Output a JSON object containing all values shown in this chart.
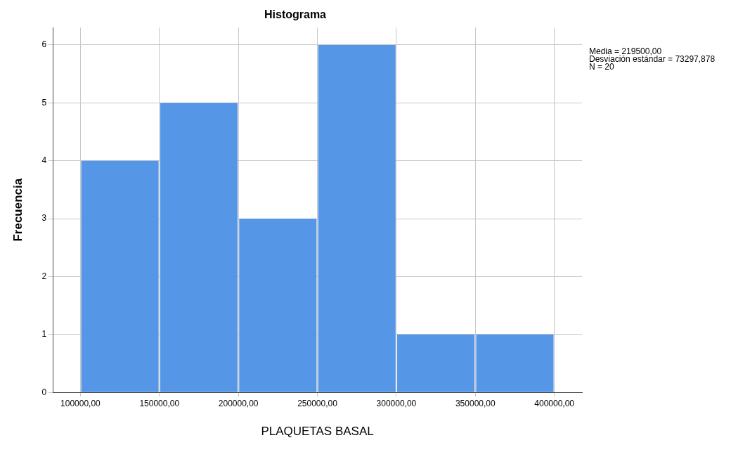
{
  "chart_data": {
    "type": "histogram",
    "title": "Histograma",
    "xlabel": "PLAQUETAS BASAL",
    "ylabel": "Frecuencia",
    "bins": [
      100000,
      150000,
      200000,
      250000,
      300000,
      350000,
      400000
    ],
    "values": [
      4,
      5,
      3,
      6,
      1,
      1
    ],
    "color": "#5596e6",
    "xlim": [
      82500,
      417500
    ],
    "xticks": [
      {
        "value": 100000,
        "label": "100000,00"
      },
      {
        "value": 150000,
        "label": "150000,00"
      },
      {
        "value": 200000,
        "label": "200000,00"
      },
      {
        "value": 250000,
        "label": "250000,00"
      },
      {
        "value": 300000,
        "label": "300000,00"
      },
      {
        "value": 350000,
        "label": "350000,00"
      },
      {
        "value": 400000,
        "label": "400000,00"
      }
    ],
    "ylim": [
      0,
      6.3
    ],
    "yticks": [
      0,
      1,
      2,
      3,
      4,
      5,
      6
    ],
    "grid": true,
    "annotations": [
      "Media = 219500,00",
      "Desviación estándar = 73297,878",
      "N = 20"
    ]
  }
}
